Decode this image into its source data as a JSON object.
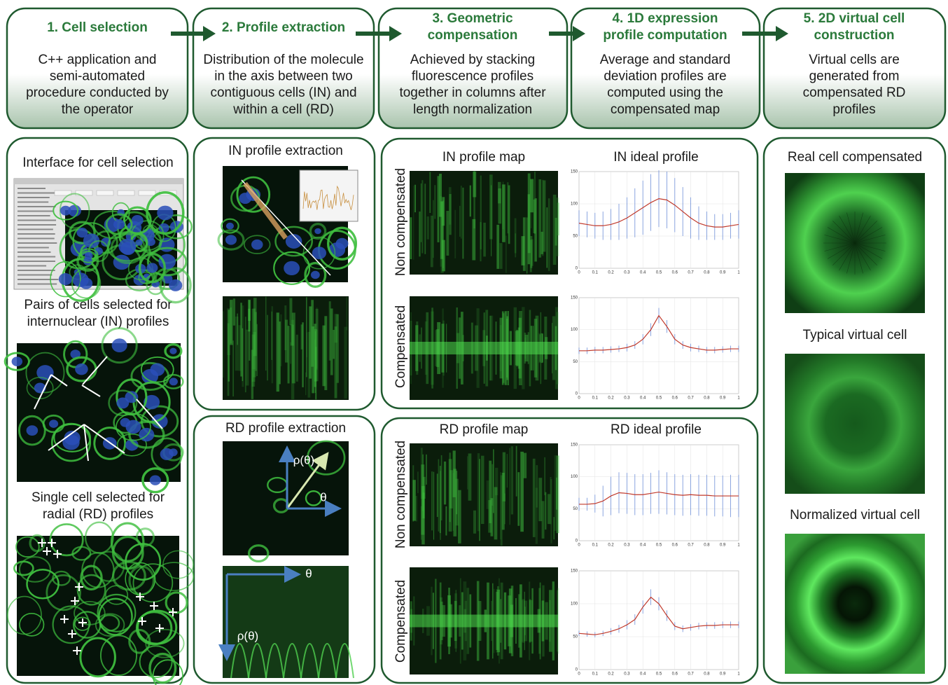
{
  "steps": [
    {
      "title": [
        "1. Cell selection"
      ],
      "text": [
        "C++ application and",
        "semi-automated",
        "procedure conducted by",
        "the operator"
      ]
    },
    {
      "title": [
        "2. Profile extraction"
      ],
      "text": [
        "Distribution of the molecule",
        "in the axis between two",
        "contiguous cells (IN) and",
        "within a cell (RD)"
      ]
    },
    {
      "title": [
        "3. Geometric",
        "compensation"
      ],
      "text": [
        "Achieved by stacking",
        "fluorescence profiles",
        "together in columns after",
        "length normalization"
      ]
    },
    {
      "title": [
        "4. 1D expression",
        "profile computation"
      ],
      "text": [
        "Average and standard",
        "deviation profiles are",
        "computed using the",
        "compensated map"
      ]
    },
    {
      "title": [
        "5. 2D virtual cell",
        "construction"
      ],
      "text": [
        "Virtual cells are",
        "generated  from",
        "compensated RD",
        "profiles"
      ]
    }
  ],
  "selection": {
    "interface": [
      "Interface for cell selection"
    ],
    "pairs": [
      "Pairs of cells selected for",
      "internuclear (IN) profiles"
    ],
    "single": [
      "Single cell selected for",
      "radial (RD) profiles"
    ]
  },
  "extraction": {
    "in_title": "IN profile extraction",
    "rd_title": "RD profile extraction",
    "rho": "ρ(θ)",
    "theta": "θ"
  },
  "compensation": {
    "in": {
      "map_title": "IN profile map",
      "profile_title": "IN ideal profile"
    },
    "rd": {
      "map_title": "RD profile map",
      "profile_title": "RD ideal profile"
    },
    "row_labels": [
      "Non compensated",
      "Compensated"
    ]
  },
  "plot_axes": {
    "xlim": [
      0,
      1
    ],
    "ylim": [
      0,
      150
    ],
    "xticks": [
      0,
      0.1,
      0.2,
      0.3,
      0.4,
      0.5,
      0.6,
      0.7,
      0.8,
      0.9,
      1
    ],
    "yticks": [
      0,
      50,
      100,
      150
    ]
  },
  "plots": [
    {
      "x": [
        0,
        0.05,
        0.1,
        0.15,
        0.2,
        0.25,
        0.3,
        0.35,
        0.4,
        0.45,
        0.5,
        0.55,
        0.6,
        0.65,
        0.7,
        0.75,
        0.8,
        0.85,
        0.9,
        0.95,
        1
      ],
      "values": [
        70,
        68,
        66,
        66,
        68,
        72,
        78,
        86,
        94,
        102,
        108,
        106,
        98,
        88,
        78,
        70,
        66,
        64,
        64,
        66,
        68
      ],
      "std": [
        20,
        20,
        20,
        22,
        24,
        28,
        32,
        38,
        42,
        44,
        44,
        44,
        42,
        38,
        32,
        26,
        22,
        20,
        20,
        20,
        22
      ]
    },
    {
      "x": [
        0,
        0.05,
        0.1,
        0.15,
        0.2,
        0.25,
        0.3,
        0.35,
        0.4,
        0.45,
        0.5,
        0.55,
        0.6,
        0.65,
        0.7,
        0.75,
        0.8,
        0.85,
        0.9,
        0.95,
        1
      ],
      "values": [
        67,
        67,
        68,
        68,
        69,
        70,
        72,
        76,
        85,
        100,
        122,
        105,
        85,
        76,
        72,
        70,
        68,
        68,
        69,
        70,
        70
      ],
      "std": [
        5,
        5,
        5,
        5,
        5,
        5,
        6,
        6,
        8,
        10,
        12,
        10,
        8,
        6,
        6,
        5,
        5,
        5,
        5,
        5,
        5
      ]
    },
    {
      "x": [
        0,
        0.05,
        0.1,
        0.15,
        0.2,
        0.25,
        0.3,
        0.35,
        0.4,
        0.45,
        0.5,
        0.55,
        0.6,
        0.65,
        0.7,
        0.75,
        0.8,
        0.85,
        0.9,
        0.95,
        1
      ],
      "values": [
        57,
        57,
        58,
        62,
        70,
        75,
        74,
        72,
        72,
        74,
        76,
        74,
        72,
        71,
        72,
        71,
        71,
        70,
        70,
        70,
        70
      ],
      "std": [
        10,
        10,
        14,
        24,
        30,
        32,
        32,
        32,
        32,
        32,
        34,
        33,
        32,
        32,
        32,
        32,
        32,
        32,
        32,
        33,
        33
      ]
    },
    {
      "x": [
        0,
        0.05,
        0.1,
        0.15,
        0.2,
        0.25,
        0.3,
        0.35,
        0.4,
        0.45,
        0.5,
        0.55,
        0.6,
        0.65,
        0.7,
        0.75,
        0.8,
        0.85,
        0.9,
        0.95,
        1
      ],
      "values": [
        55,
        54,
        53,
        55,
        58,
        62,
        68,
        76,
        95,
        110,
        100,
        82,
        66,
        62,
        64,
        66,
        67,
        67,
        68,
        68,
        68
      ],
      "std": [
        4,
        4,
        4,
        4,
        5,
        6,
        7,
        8,
        10,
        12,
        10,
        8,
        6,
        5,
        5,
        5,
        5,
        5,
        5,
        5,
        5
      ]
    }
  ],
  "virtual": [
    "Real cell compensated",
    "Typical virtual cell",
    "Normalized virtual cell"
  ]
}
